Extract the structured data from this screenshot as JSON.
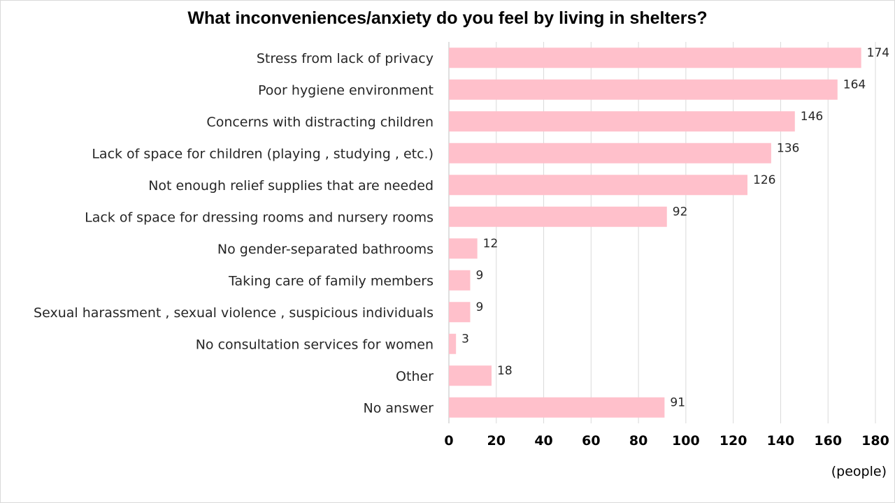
{
  "chart_data": {
    "type": "bar",
    "orientation": "horizontal",
    "title": "What inconveniences/anxiety do you feel by living in shelters?",
    "categories": [
      "Stress from lack of privacy",
      "Poor hygiene environment",
      "Concerns with distracting children",
      "Lack of space for children (playing , studying , etc.)",
      "Not enough relief supplies that are needed",
      "Lack of space for dressing rooms and nursery rooms",
      "No gender-separated bathrooms",
      "Taking care of family members",
      "Sexual harassment , sexual violence , suspicious individuals",
      "No consultation services for women",
      "Other",
      "No answer"
    ],
    "values": [
      174,
      164,
      146,
      136,
      126,
      92,
      12,
      9,
      9,
      3,
      18,
      91
    ],
    "x_ticks": [
      0,
      20,
      40,
      60,
      80,
      100,
      120,
      140,
      160,
      180
    ],
    "xlim": [
      0,
      180
    ],
    "xunit": "(people)",
    "grid": true,
    "legend": "none",
    "bar_color": "#ffc0cb",
    "grid_color": "#d9d9d9"
  }
}
